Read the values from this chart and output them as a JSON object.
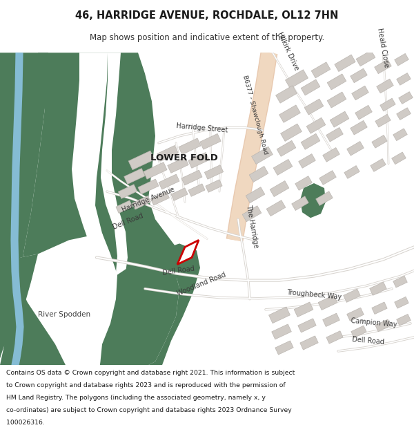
{
  "title": "46, HARRIDGE AVENUE, ROCHDALE, OL12 7HN",
  "subtitle": "Map shows position and indicative extent of the property.",
  "footer_line1": "Contains OS data © Crown copyright and database right 2021. This information is subject",
  "footer_line2": "to Crown copyright and database rights 2023 and is reproduced with the permission of",
  "footer_line3": "HM Land Registry. The polygons (including the associated geometry, namely x, y",
  "footer_line4": "co-ordinates) are subject to Crown copyright and database rights 2023 Ordnance Survey",
  "footer_line5": "100026316.",
  "map_bg": "#f0eeeb",
  "green_color": "#4d7c5a",
  "road_color": "#e8c9b0",
  "water_color": "#85bcd4",
  "building_color": "#d0cbc6",
  "building_outline": "#bbb6b1",
  "white_path": "#ffffff",
  "red_outline": "#cc0000"
}
